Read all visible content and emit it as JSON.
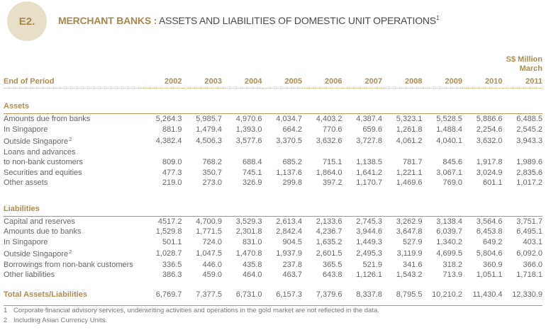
{
  "header": {
    "badge": "E2.",
    "title_bold": "MERCHANT BANKS :",
    "title_rest": " ASSETS AND LIABILITIES OF DOMESTIC UNIT OPERATIONS",
    "title_footnote_ref": "1"
  },
  "table": {
    "unit": "S$ Million",
    "month": "March",
    "row_header_label": "End of Period",
    "years": [
      "2002",
      "2003",
      "2004",
      "2005",
      "2006",
      "2007",
      "2008",
      "2009",
      "2010",
      "2011"
    ],
    "sections": [
      {
        "title": "Assets",
        "rows": [
          {
            "label": "Amounts due from banks",
            "indent": 0,
            "values": [
              "5,264.3",
              "5,985.7",
              "4,970.6",
              "4,034.7",
              "4,403.2",
              "4,387.4",
              "5,323.1",
              "5,528.5",
              "5,886.6",
              "6,488.5"
            ]
          },
          {
            "label": "In Singapore",
            "indent": 2,
            "values": [
              "881.9",
              "1,479.4",
              "1,393.0",
              "664.2",
              "770.6",
              "659.6",
              "1,261.8",
              "1,488.4",
              "2,254.6",
              "2,545.2"
            ]
          },
          {
            "label": "Outside Singapore",
            "sup": "2",
            "indent": 2,
            "values": [
              "4,382.4",
              "4,506.3",
              "3,577.6",
              "3,370.5",
              "3,632.6",
              "3,727.8",
              "4,061.2",
              "4,040.1",
              "3,632.0",
              "3,943.3"
            ]
          },
          {
            "label": "Loans and advances",
            "indent": 0,
            "values": []
          },
          {
            "label": "to non-bank customers",
            "indent": 1,
            "values": [
              "809.0",
              "768.2",
              "688.4",
              "685.2",
              "715.1",
              "1,138.5",
              "781.7",
              "845.6",
              "1,917.8",
              "1,989.6"
            ]
          },
          {
            "label": "Securities and equities",
            "indent": 0,
            "values": [
              "477.3",
              "350.7",
              "745.1",
              "1,137.6",
              "1,864.0",
              "1,641.2",
              "1,221.1",
              "3,067.1",
              "3,024.9",
              "2,835.6"
            ]
          },
          {
            "label": "Other assets",
            "indent": 0,
            "values": [
              "219.0",
              "273.0",
              "326.9",
              "299.8",
              "397.2",
              "1,170.7",
              "1,469.6",
              "769.0",
              "601.1",
              "1,017.2"
            ]
          }
        ]
      },
      {
        "title": "Liabilities",
        "rows": [
          {
            "label": "Capital and reserves",
            "indent": 0,
            "values": [
              "4517.2",
              "4,700.9",
              "3,529.3",
              "2,613.4",
              "2,133.6",
              "2,745.3",
              "3,262.9",
              "3,138.4",
              "3,564.6",
              "3,751.7"
            ]
          },
          {
            "label": "Amounts due to banks",
            "indent": 0,
            "values": [
              "1,529.8",
              "1,771.5",
              "2,301.8",
              "2,842.4",
              "4,236.7",
              "3,944.6",
              "3,647.8",
              "6,039.7",
              "6,453.8",
              "6,495.1"
            ]
          },
          {
            "label": "In Singapore",
            "indent": 2,
            "values": [
              "501.1",
              "724.0",
              "831.0",
              "904.5",
              "1,635.2",
              "1,449.3",
              "527.9",
              "1,340.2",
              "649.2",
              "403.1"
            ]
          },
          {
            "label": "Outside Singapore",
            "sup": "2",
            "indent": 2,
            "values": [
              "1,028.7",
              "1,047.5",
              "1,470.8",
              "1,937.9",
              "2,601.5",
              "2,495.3",
              "3,119.9",
              "4,699.5",
              "5,804.6",
              "6,092.0"
            ]
          },
          {
            "label": "Borrowings from non-bank customers",
            "indent": 0,
            "values": [
              "336.5",
              "446.0",
              "435.8",
              "237.8",
              "365.5",
              "521.9",
              "341.6",
              "318.2",
              "360.9",
              "366.0"
            ]
          },
          {
            "label": "Other liabilities",
            "indent": 0,
            "values": [
              "386.3",
              "459.0",
              "464.0",
              "463.7",
              "643.8",
              "1,126.1",
              "1,543.2",
              "713.9",
              "1,051.1",
              "1,718.1"
            ]
          }
        ]
      }
    ],
    "total": {
      "label": "Total Assets/Liabilities",
      "values": [
        "6,769.7",
        "7,377.5",
        "6,731.0",
        "6,157.3",
        "7,379.6",
        "8,337.8",
        "8,795.5",
        "10,210.2",
        "11,430.4",
        "12,330.9"
      ]
    }
  },
  "footnotes": [
    {
      "num": "1",
      "text": "Corporate financial advisory services, underwriting activities and operations in the gold market are not reflected in the data."
    },
    {
      "num": "2",
      "text": "Including Asian Currency Units."
    }
  ],
  "colors": {
    "gold_text": "#AE8D51",
    "gold_line": "#B5985C",
    "badge_beige": "#E8DFC9",
    "title_dark": "#4A4B4D",
    "data_gray": "#656668",
    "footnote_gray": "#77787B"
  }
}
